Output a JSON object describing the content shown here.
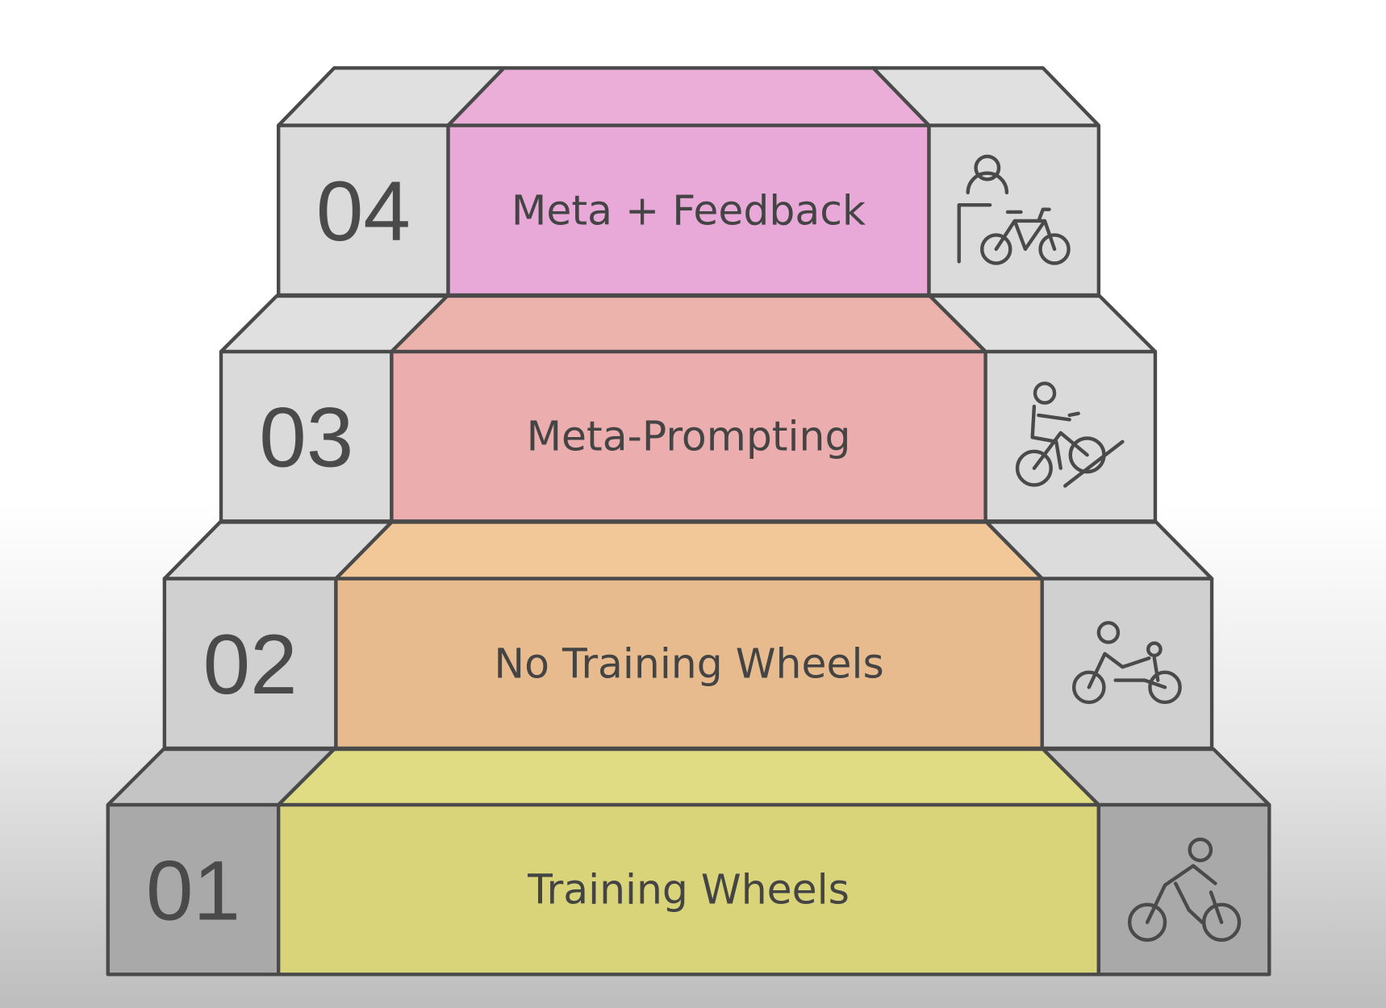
{
  "steps": [
    {
      "number": "01",
      "label": "Training Wheels",
      "icon": "cyclist-icon",
      "center_color": "#d9d37a",
      "top_color": "#dfdc84",
      "side_color": "#a9a9a9",
      "side_top_color": "#c4c4c4"
    },
    {
      "number": "02",
      "label": "No Training Wheels",
      "icon": "child-and-adult-bike-icon",
      "center_color": "#e8bb8e",
      "top_color": "#f2c898",
      "side_color": "#d0d0d0",
      "side_top_color": "#dcdcdc"
    },
    {
      "number": "03",
      "label": "Meta-Prompting",
      "icon": "uphill-cyclist-icon",
      "center_color": "#ebadad",
      "top_color": "#ecb2ac",
      "side_color": "#dadada",
      "side_top_color": "#e0e0e0"
    },
    {
      "number": "04",
      "label": "Meta + Feedback",
      "icon": "person-with-bike-icon",
      "center_color": "#e8a9d8",
      "top_color": "#eaaed8",
      "side_color": "#dbdbdb",
      "side_top_color": "#e0e0e0"
    }
  ],
  "colors": {
    "edge": "#4a4a4a",
    "text": "#444444"
  }
}
